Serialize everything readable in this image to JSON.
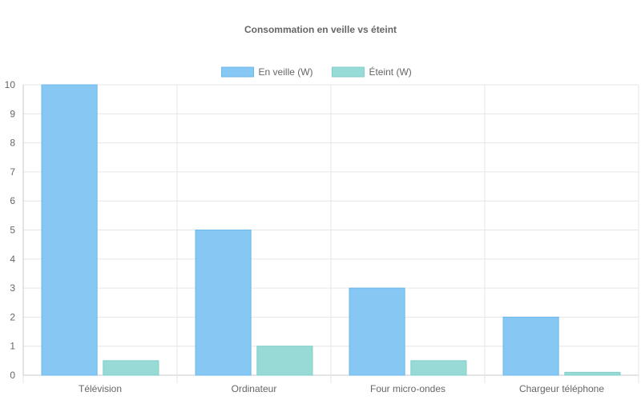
{
  "chart_data": {
    "type": "bar",
    "title": "Consommation en veille vs éteint",
    "categories": [
      "Télévision",
      "Ordinateur",
      "Four micro-ondes",
      "Chargeur téléphone"
    ],
    "series": [
      {
        "name": "En veille (W)",
        "values": [
          10,
          5,
          3,
          2
        ],
        "color": "#87c7f3",
        "border": "#6cb8ee"
      },
      {
        "name": "Éteint (W)",
        "values": [
          0.5,
          1,
          0.5,
          0.1
        ],
        "color": "#98dad6",
        "border": "#7fcfca"
      }
    ],
    "ylim": [
      0,
      10
    ],
    "yticks": [
      0,
      1,
      2,
      3,
      4,
      5,
      6,
      7,
      8,
      9,
      10
    ],
    "grid": true,
    "legend_position": "top"
  }
}
